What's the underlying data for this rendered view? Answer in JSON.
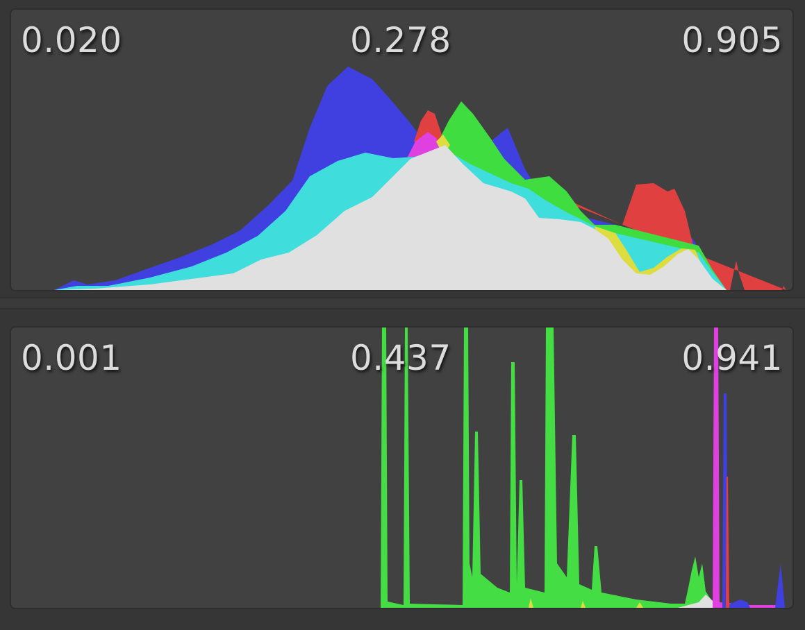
{
  "histograms": [
    {
      "id": "top",
      "labels": {
        "min": "0.020",
        "mid": "0.278",
        "max": "0.905"
      },
      "colors": {
        "red": "#e04040",
        "green": "#40dd40",
        "blue": "#4040e0",
        "cyan": "#40dddd",
        "magenta": "#e040e0",
        "yellow": "#dddd40",
        "white": "#e0e0e0"
      }
    },
    {
      "id": "bottom",
      "labels": {
        "min": "0.001",
        "mid": "0.437",
        "max": "0.941"
      },
      "colors": {
        "green": "#44dd44",
        "magenta": "#e040e0",
        "blue": "#4040e0",
        "yellow": "#dddd40",
        "white": "#e0e0e0"
      }
    }
  ]
}
